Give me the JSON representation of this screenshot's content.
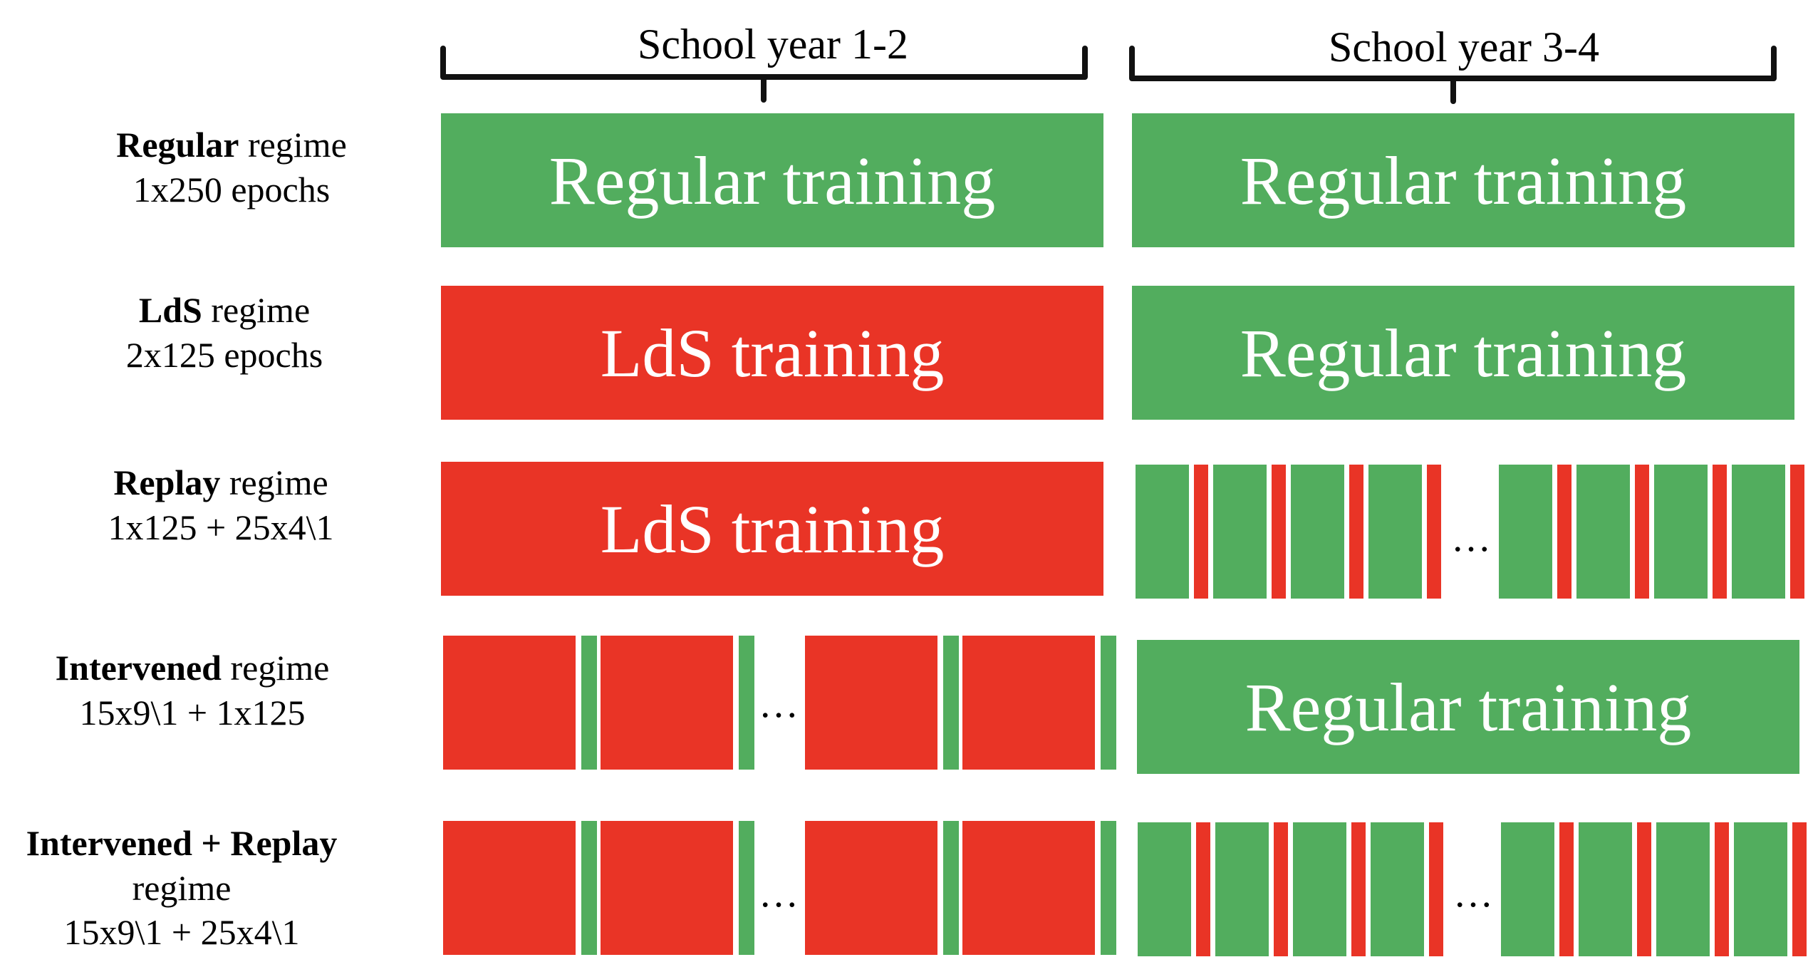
{
  "headers": {
    "col1": "School year 1-2",
    "col2": "School year 3-4"
  },
  "rows": [
    {
      "name_bold": "Regular",
      "name_rest": " regime",
      "line2": "1x250 epochs",
      "line3": ""
    },
    {
      "name_bold": "LdS",
      "name_rest": " regime",
      "line2": "2x125 epochs",
      "line3": ""
    },
    {
      "name_bold": "Replay",
      "name_rest": " regime",
      "line2": "1x125 + 25x4\\1",
      "line3": ""
    },
    {
      "name_bold": "Intervened",
      "name_rest": " regime",
      "line2": "15x9\\1 + 1x125",
      "line3": ""
    },
    {
      "name_bold": "Intervened + Replay",
      "name_rest": "",
      "line2": "regime",
      "line3": "15x9\\1 + 25x4\\1"
    }
  ],
  "blocks": {
    "regular_training": "Regular training",
    "lds_training": "LdS training"
  },
  "ellipsis": "…",
  "colors": {
    "green": "#52ad5e",
    "red": "#e93426"
  }
}
